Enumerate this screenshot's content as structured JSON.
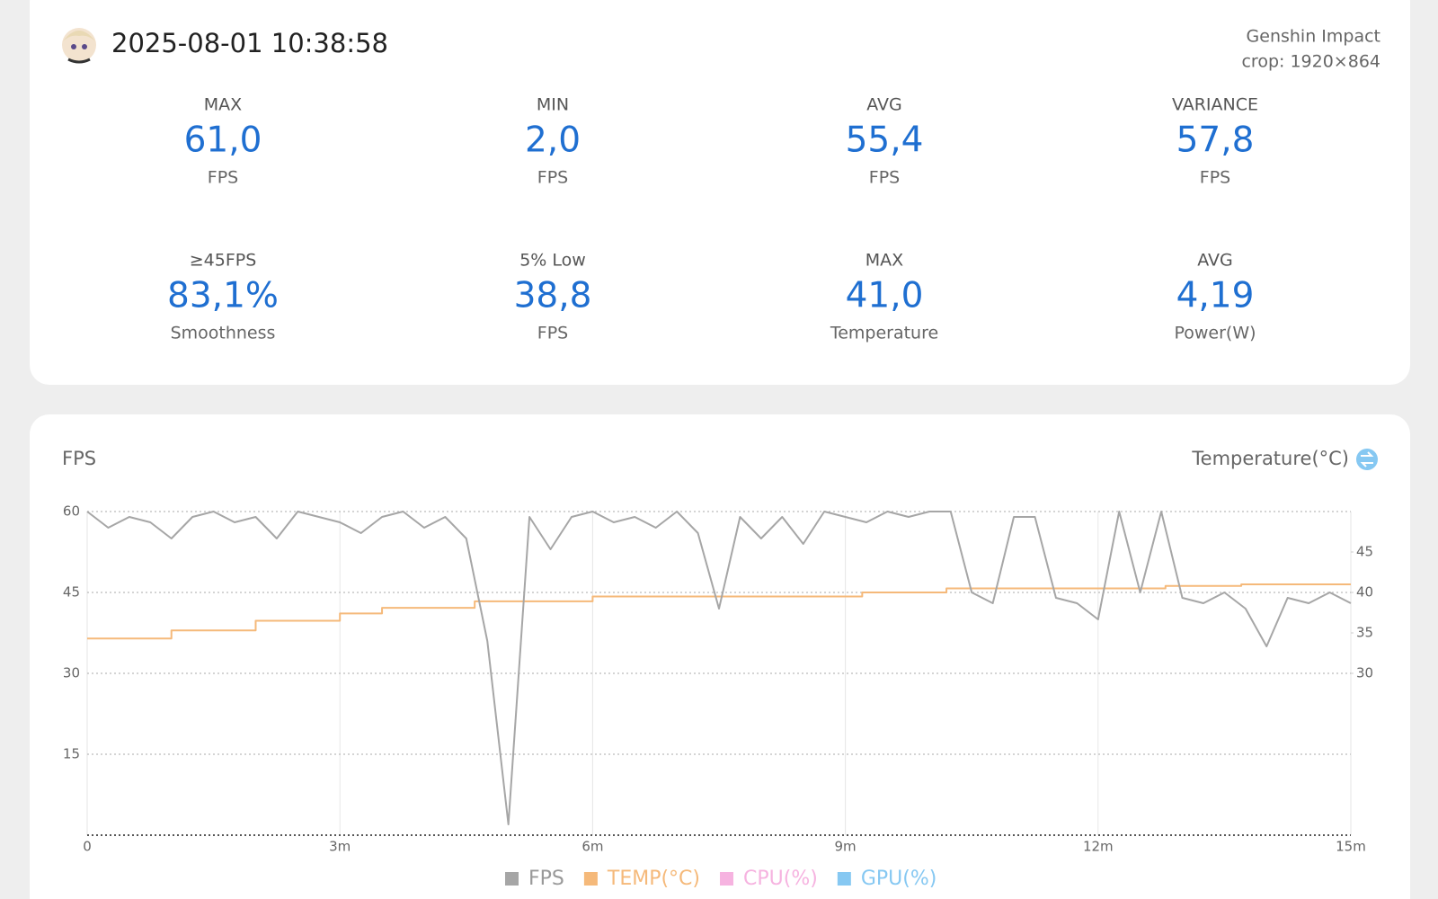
{
  "header": {
    "date": "2025-08-01 10:38:58",
    "game": "Genshin Impact",
    "crop": "crop: 1920×864"
  },
  "stats": [
    {
      "label": "MAX",
      "value": "61,0",
      "unit": "FPS"
    },
    {
      "label": "MIN",
      "value": "2,0",
      "unit": "FPS"
    },
    {
      "label": "AVG",
      "value": "55,4",
      "unit": "FPS"
    },
    {
      "label": "VARIANCE",
      "value": "57,8",
      "unit": "FPS"
    },
    {
      "label": "≥45FPS",
      "value": "83,1%",
      "unit": "Smoothness"
    },
    {
      "label": "5% Low",
      "value": "38,8",
      "unit": "FPS"
    },
    {
      "label": "MAX",
      "value": "41,0",
      "unit": "Temperature"
    },
    {
      "label": "AVG",
      "value": "4,19",
      "unit": "Power(W)"
    }
  ],
  "chart_data": {
    "type": "line",
    "y_label": "FPS",
    "y2_label": "Temperature(°C)",
    "xlim": [
      0,
      15
    ],
    "xticks": [
      0,
      {
        "value": 3,
        "label": "3m"
      },
      {
        "value": 6,
        "label": "6m"
      },
      {
        "value": 9,
        "label": "9m"
      },
      {
        "value": 12,
        "label": "12m"
      },
      {
        "value": 15,
        "label": "15m"
      }
    ],
    "ylim": [
      0,
      60
    ],
    "yticks": [
      15,
      30,
      45,
      60
    ],
    "y2lim": [
      10,
      50
    ],
    "y2ticks": [
      30,
      35,
      40,
      45
    ],
    "grid": true,
    "legend": "bottom",
    "series": [
      {
        "name": "FPS",
        "color": "#a6a6a6",
        "x": [
          0,
          0.25,
          0.5,
          0.75,
          1,
          1.25,
          1.5,
          1.75,
          2,
          2.25,
          2.5,
          2.75,
          3,
          3.25,
          3.5,
          3.75,
          4,
          4.25,
          4.5,
          4.75,
          5,
          5.25,
          5.5,
          5.75,
          6,
          6.25,
          6.5,
          6.75,
          7,
          7.25,
          7.5,
          7.75,
          8,
          8.25,
          8.5,
          8.75,
          9,
          9.25,
          9.5,
          9.75,
          10,
          10.25,
          10.5,
          10.75,
          11,
          11.25,
          11.5,
          11.75,
          12,
          12.25,
          12.5,
          12.75,
          13,
          13.25,
          13.5,
          13.75,
          14,
          14.25,
          14.5,
          14.75,
          15
        ],
        "values": [
          60,
          57,
          59,
          58,
          55,
          59,
          60,
          58,
          59,
          55,
          60,
          59,
          58,
          56,
          59,
          60,
          57,
          59,
          55,
          36,
          2,
          59,
          53,
          59,
          60,
          58,
          59,
          57,
          60,
          56,
          42,
          59,
          55,
          59,
          54,
          60,
          59,
          58,
          60,
          59,
          60,
          60,
          45,
          43,
          59,
          59,
          44,
          43,
          40,
          60,
          45,
          60,
          44,
          43,
          45,
          42,
          35,
          44,
          43,
          45,
          43
        ]
      },
      {
        "name": "TEMP(°C)",
        "color": "#f5b97a",
        "axis": "y2",
        "x": [
          0,
          1,
          1,
          2,
          2,
          3,
          3,
          3.5,
          3.5,
          4.6,
          4.6,
          6,
          6,
          9.2,
          9.2,
          10.2,
          10.2,
          12.8,
          12.8,
          13.7,
          13.7,
          15
        ],
        "values": [
          34.3,
          34.3,
          35.3,
          35.3,
          36.5,
          36.5,
          37.4,
          37.4,
          38.1,
          38.1,
          38.9,
          38.9,
          39.5,
          39.5,
          40.0,
          40.0,
          40.5,
          40.5,
          40.8,
          40.8,
          41.0,
          41.0
        ]
      },
      {
        "name": "CPU(%)",
        "color": "#f6b3e0",
        "x": [],
        "values": []
      },
      {
        "name": "GPU(%)",
        "color": "#86c8f2",
        "x": [],
        "values": []
      }
    ]
  }
}
